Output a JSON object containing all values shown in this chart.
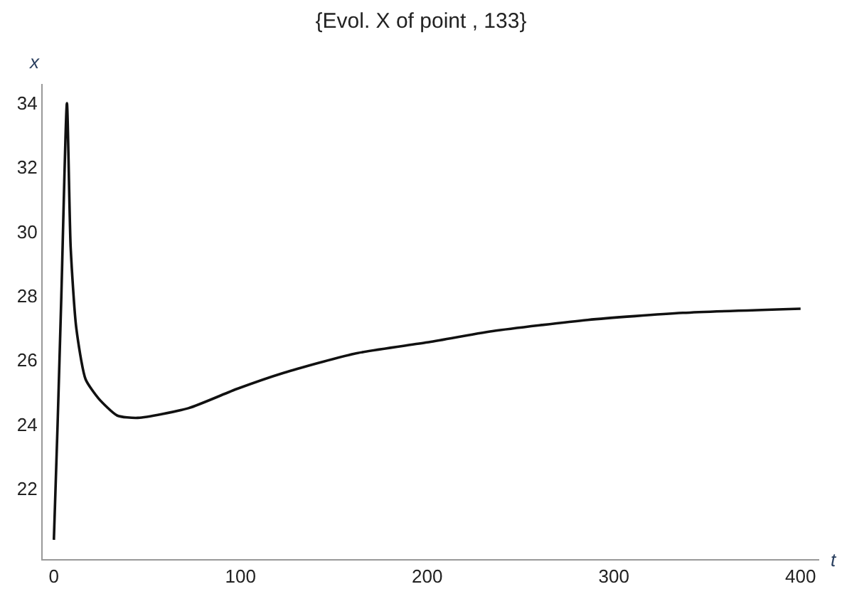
{
  "chart_data": {
    "type": "line",
    "title": "{Evol. X of point , 133}",
    "xlabel": "t",
    "ylabel": "x",
    "x": [
      0,
      2,
      4,
      7,
      9,
      12,
      17,
      24,
      34,
      45,
      72,
      98,
      123,
      161,
      200,
      235,
      286,
      337,
      400
    ],
    "series": [
      {
        "color": "#111111",
        "values": [
          20.4,
          24,
          28,
          34,
          29.5,
          27,
          25.4,
          24.8,
          24.27,
          24.2,
          24.5,
          25.1,
          25.6,
          26.2,
          26.55,
          26.9,
          27.25,
          27.47,
          27.6
        ]
      }
    ],
    "xlim": [
      -6,
      410
    ],
    "ylim": [
      19.8,
      34.6
    ],
    "xticks": [
      0,
      100,
      200,
      300,
      400
    ],
    "yticks": [
      22,
      24,
      26,
      28,
      30,
      32,
      34
    ],
    "grid": false,
    "legend": false,
    "marker": "none",
    "line_style": "solid"
  }
}
